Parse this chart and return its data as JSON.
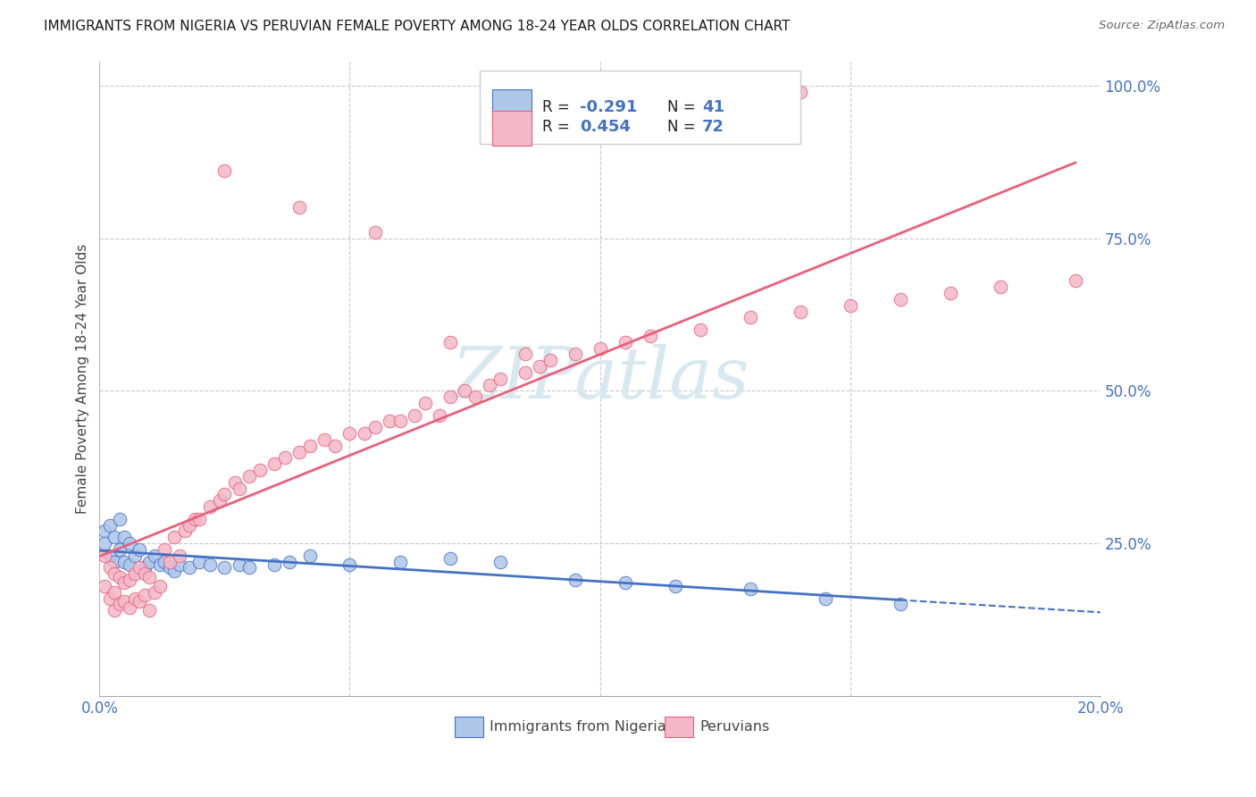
{
  "title": "IMMIGRANTS FROM NIGERIA VS PERUVIAN FEMALE POVERTY AMONG 18-24 YEAR OLDS CORRELATION CHART",
  "source": "Source: ZipAtlas.com",
  "ylabel": "Female Poverty Among 18-24 Year Olds",
  "ylabel_right_ticks": [
    "100.0%",
    "75.0%",
    "50.0%",
    "25.0%"
  ],
  "ylabel_right_vals": [
    1.0,
    0.75,
    0.5,
    0.25
  ],
  "color_nigeria": "#aec6e8",
  "color_peru": "#f4b8c8",
  "color_line_nigeria": "#4472c4",
  "color_line_peru": "#e8607a",
  "axis_color": "#4472c4",
  "watermark_color": "#d8e8f0",
  "nigeria_x": [
    0.001,
    0.001,
    0.002,
    0.002,
    0.003,
    0.003,
    0.004,
    0.004,
    0.005,
    0.005,
    0.006,
    0.006,
    0.007,
    0.008,
    0.009,
    0.01,
    0.011,
    0.012,
    0.013,
    0.014,
    0.015,
    0.016,
    0.018,
    0.02,
    0.022,
    0.025,
    0.028,
    0.03,
    0.035,
    0.038,
    0.042,
    0.05,
    0.06,
    0.07,
    0.08,
    0.095,
    0.105,
    0.115,
    0.13,
    0.145,
    0.16
  ],
  "nigeria_y": [
    0.27,
    0.25,
    0.28,
    0.23,
    0.26,
    0.22,
    0.29,
    0.24,
    0.26,
    0.22,
    0.25,
    0.215,
    0.23,
    0.24,
    0.21,
    0.22,
    0.23,
    0.215,
    0.22,
    0.21,
    0.205,
    0.215,
    0.21,
    0.22,
    0.215,
    0.21,
    0.215,
    0.21,
    0.215,
    0.22,
    0.23,
    0.215,
    0.22,
    0.225,
    0.22,
    0.19,
    0.185,
    0.18,
    0.175,
    0.16,
    0.15
  ],
  "peru_x": [
    0.001,
    0.001,
    0.002,
    0.002,
    0.003,
    0.003,
    0.003,
    0.004,
    0.004,
    0.005,
    0.005,
    0.006,
    0.006,
    0.007,
    0.007,
    0.008,
    0.008,
    0.009,
    0.009,
    0.01,
    0.01,
    0.011,
    0.012,
    0.013,
    0.014,
    0.015,
    0.016,
    0.017,
    0.018,
    0.019,
    0.02,
    0.022,
    0.024,
    0.025,
    0.027,
    0.028,
    0.03,
    0.032,
    0.035,
    0.037,
    0.04,
    0.042,
    0.045,
    0.047,
    0.05,
    0.053,
    0.055,
    0.058,
    0.06,
    0.063,
    0.065,
    0.068,
    0.07,
    0.073,
    0.075,
    0.078,
    0.08,
    0.085,
    0.088,
    0.09,
    0.095,
    0.1,
    0.105,
    0.11,
    0.12,
    0.13,
    0.14,
    0.15,
    0.16,
    0.17,
    0.18,
    0.195
  ],
  "peru_y": [
    0.23,
    0.18,
    0.21,
    0.16,
    0.2,
    0.17,
    0.14,
    0.195,
    0.15,
    0.185,
    0.155,
    0.19,
    0.145,
    0.2,
    0.16,
    0.21,
    0.155,
    0.2,
    0.165,
    0.195,
    0.14,
    0.17,
    0.18,
    0.24,
    0.22,
    0.26,
    0.23,
    0.27,
    0.28,
    0.29,
    0.29,
    0.31,
    0.32,
    0.33,
    0.35,
    0.34,
    0.36,
    0.37,
    0.38,
    0.39,
    0.4,
    0.41,
    0.42,
    0.41,
    0.43,
    0.43,
    0.44,
    0.45,
    0.45,
    0.46,
    0.48,
    0.46,
    0.49,
    0.5,
    0.49,
    0.51,
    0.52,
    0.53,
    0.54,
    0.55,
    0.56,
    0.57,
    0.58,
    0.59,
    0.6,
    0.62,
    0.63,
    0.64,
    0.65,
    0.66,
    0.67,
    0.68
  ],
  "peru_outliers_x": [
    0.025,
    0.04,
    0.055,
    0.07,
    0.085,
    0.14
  ],
  "peru_outliers_y": [
    0.86,
    0.8,
    0.76,
    0.58,
    0.56,
    0.99
  ],
  "xlim": [
    0.0,
    0.2
  ],
  "ylim": [
    0.0,
    1.04
  ]
}
